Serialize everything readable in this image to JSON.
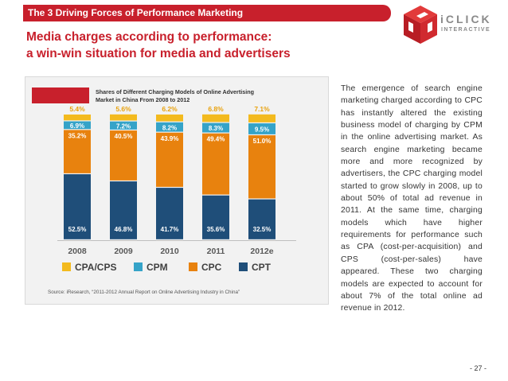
{
  "header": {
    "title": "The 3 Driving Forces of Performance Marketing"
  },
  "logo": {
    "brand": "iCLICK",
    "sub": "INTERACTIVE"
  },
  "slide": {
    "title_line1": "Media charges according to performance:",
    "title_line2": "a win-win situation for media and advertisers"
  },
  "chart_data": {
    "type": "bar",
    "stacked": true,
    "title_line1": "Shares of Different Charging Models of Online Advertising",
    "title_line2": "Market in China From 2008 to 2012",
    "categories": [
      "2008",
      "2009",
      "2010",
      "2011",
      "2012e"
    ],
    "series": [
      {
        "name": "CPT",
        "color": "#1f4e79",
        "values": [
          52.5,
          46.8,
          41.7,
          35.6,
          32.5
        ],
        "labels": [
          "52.5%",
          "46.8%",
          "41.7%",
          "35.6%",
          "32.5%"
        ]
      },
      {
        "name": "CPC",
        "color": "#e8820e",
        "values": [
          35.2,
          40.5,
          43.9,
          49.4,
          51.0
        ],
        "labels": [
          "35.2%",
          "40.5%",
          "43.9%",
          "49.4%",
          "51.0%"
        ]
      },
      {
        "name": "CPM",
        "color": "#35a3c8",
        "values": [
          6.9,
          7.2,
          8.2,
          8.3,
          9.5
        ],
        "labels": [
          "6.9%",
          "7.2%",
          "8.2%",
          "8.3%",
          "9.5%"
        ]
      },
      {
        "name": "CPA/CPS",
        "color": "#f3ba1e",
        "values": [
          5.4,
          5.6,
          6.2,
          6.8,
          7.1
        ],
        "labels": [
          "5.4%",
          "5.6%",
          "6.2%",
          "6.8%",
          "7.1%"
        ]
      }
    ],
    "legend": [
      "CPA/CPS",
      "CPM",
      "CPC",
      "CPT"
    ],
    "ylim": [
      0,
      100
    ],
    "source": "Source: iResearch, “2011-2012 Annual Report on Online Advertising Industry in China”"
  },
  "body_text": "The emergence of search engine marketing charged according to CPC has instantly altered the existing business model of charging by CPM in the online advertising market. As search engine marketing became more and more recognized by advertisers, the CPC charging model started to grow slowly in 2008, up to about 50% of total ad revenue in 2011. At the same time, charging models which have higher requirements for performance such as CPA (cost-per-acquisition) and CPS (cost-per-sales) have appeared. These two charging models are expected to account for about 7% of the total online ad revenue in 2012.",
  "page_number": "- 27 -"
}
